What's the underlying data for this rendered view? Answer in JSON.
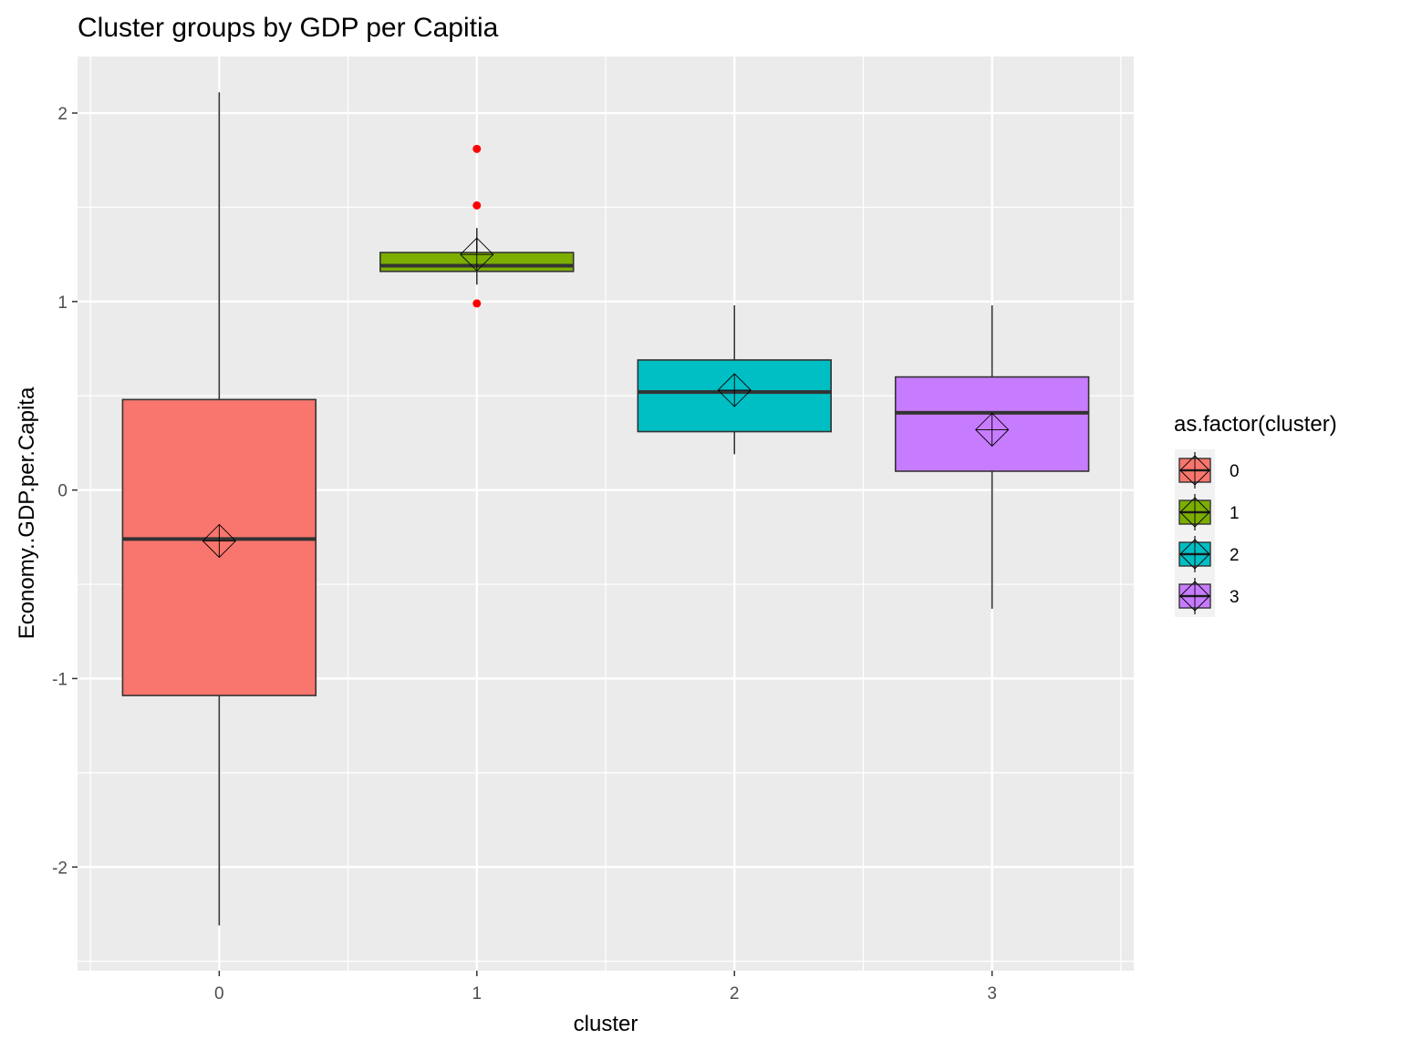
{
  "chart_data": {
    "type": "boxplot",
    "title": "Cluster groups by GDP per Capitia",
    "xlabel": "cluster",
    "ylabel": "Economy..GDP.per.Capita",
    "categories": [
      "0",
      "1",
      "2",
      "3"
    ],
    "ylim": [
      -2.55,
      2.3
    ],
    "yticks": [
      -2,
      -1,
      0,
      1,
      2
    ],
    "yticklabels": [
      "-2",
      "-1",
      "0",
      "1",
      "2"
    ],
    "grid": true,
    "legend": {
      "title": "as.factor(cluster)",
      "position": "right",
      "entries": [
        "0",
        "1",
        "2",
        "3"
      ]
    },
    "colors": [
      "#F8766D",
      "#7CAE00",
      "#00BFC4",
      "#C77CFF"
    ],
    "outlier_color": "#FF0000",
    "boxes": [
      {
        "category": "0",
        "min": -2.31,
        "q1": -1.09,
        "median": -0.26,
        "q3": 0.48,
        "max": 2.11,
        "mean": -0.27,
        "outliers": []
      },
      {
        "category": "1",
        "min": 1.09,
        "q1": 1.16,
        "median": 1.19,
        "q3": 1.26,
        "max": 1.39,
        "mean": 1.25,
        "outliers": [
          1.81,
          1.51,
          0.99
        ]
      },
      {
        "category": "2",
        "min": 0.19,
        "q1": 0.31,
        "median": 0.52,
        "q3": 0.69,
        "max": 0.98,
        "mean": 0.53,
        "outliers": []
      },
      {
        "category": "3",
        "min": -0.63,
        "q1": 0.1,
        "median": 0.41,
        "q3": 0.6,
        "max": 0.98,
        "mean": 0.32,
        "outliers": []
      }
    ]
  }
}
